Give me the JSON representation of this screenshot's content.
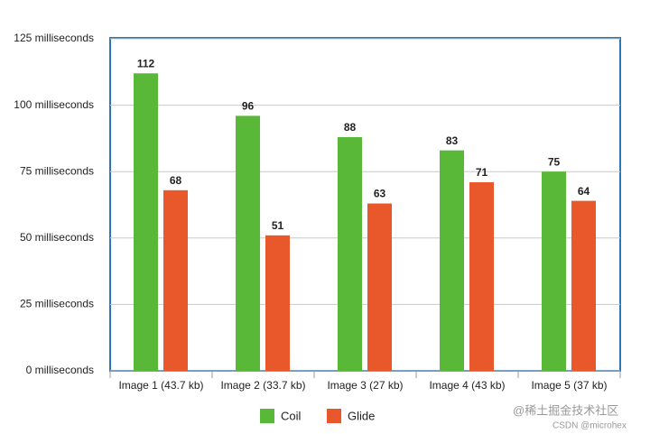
{
  "chart_data": {
    "type": "bar",
    "categories": [
      "Image 1 (43.7 kb)",
      "Image 2 (33.7 kb)",
      "Image 3 (27 kb)",
      "Image 4 (43 kb)",
      "Image 5 (37 kb)"
    ],
    "series": [
      {
        "name": "Coil",
        "color": "#5ab838",
        "values": [
          112,
          96,
          88,
          83,
          75
        ]
      },
      {
        "name": "Glide",
        "color": "#e8582a",
        "values": [
          68,
          51,
          63,
          71,
          64
        ]
      }
    ],
    "ylim": [
      0,
      125
    ],
    "yticks": [
      {
        "value": 0,
        "label": "0 milliseconds"
      },
      {
        "value": 25,
        "label": "25 milliseconds"
      },
      {
        "value": 50,
        "label": "50 milliseconds"
      },
      {
        "value": 75,
        "label": "75 milliseconds"
      },
      {
        "value": 100,
        "label": "100 milliseconds"
      },
      {
        "value": 125,
        "label": "125 milliseconds"
      }
    ],
    "grid": true,
    "legend": "bottom",
    "watermark": [
      "@稀土掘金技术社区",
      "CSDN @microhex"
    ]
  }
}
